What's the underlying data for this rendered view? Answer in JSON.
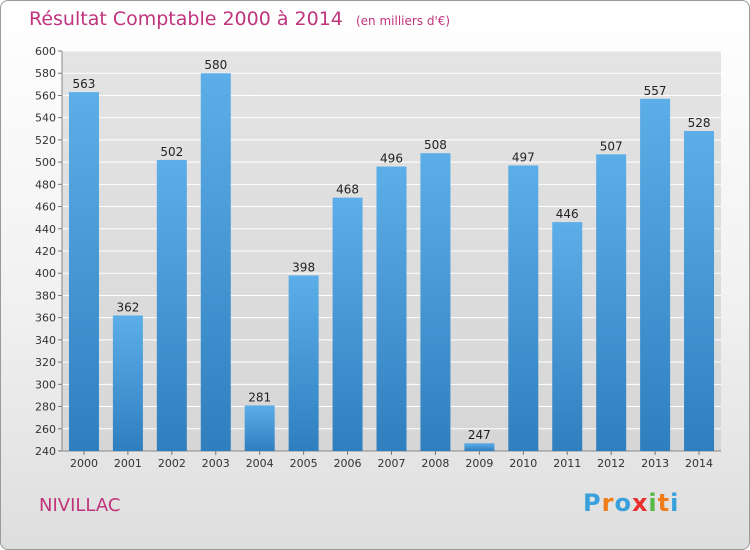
{
  "title": "Résultat Comptable 2000 à 2014",
  "unit_note": "(en milliers d'€)",
  "city": "NIVILLAC",
  "logo": {
    "letters": [
      "P",
      "r",
      "o",
      "x",
      "i",
      "t",
      "i"
    ],
    "colors": [
      "#3aa0dc",
      "#f07d1a",
      "#3aa0dc",
      "#e8312f",
      "#58b947",
      "#f07d1a",
      "#3aa0dc"
    ]
  },
  "colors": {
    "accent": "#c0347d",
    "bar": "#3d94d8"
  },
  "chart_data": {
    "type": "bar",
    "categories": [
      "2000",
      "2001",
      "2002",
      "2003",
      "2004",
      "2005",
      "2006",
      "2007",
      "2008",
      "2009",
      "2010",
      "2011",
      "2012",
      "2013",
      "2014"
    ],
    "values": [
      563,
      362,
      502,
      580,
      281,
      398,
      468,
      496,
      508,
      247,
      497,
      446,
      507,
      557,
      528
    ],
    "ylim": [
      240,
      600
    ],
    "yticks": [
      240,
      260,
      280,
      300,
      320,
      340,
      360,
      380,
      400,
      420,
      440,
      460,
      480,
      500,
      520,
      540,
      560,
      580,
      600
    ],
    "grid": true,
    "data_labels": true
  }
}
